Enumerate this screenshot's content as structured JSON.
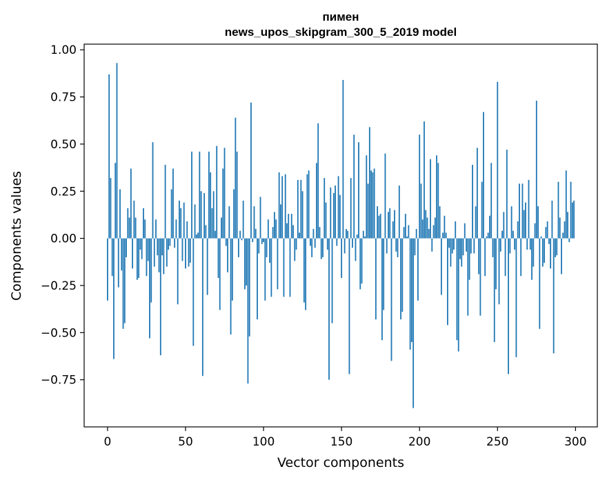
{
  "chart_data": {
    "type": "bar",
    "title": [
      "пимен",
      "news_upos_skipgram_300_5_2019 model"
    ],
    "xlabel": "Vector components",
    "ylabel": "Components values",
    "xlim": [
      -15,
      314
    ],
    "ylim": [
      -1.0,
      1.03
    ],
    "x_ticks": [
      0,
      50,
      100,
      150,
      200,
      250,
      300
    ],
    "y_ticks": [
      -0.75,
      -0.5,
      -0.25,
      0.0,
      0.25,
      0.5,
      0.75,
      1.0
    ],
    "y_tick_labels": [
      "−0.75",
      "−0.50",
      "−0.25",
      "0.00",
      "0.25",
      "0.50",
      "0.75",
      "1.00"
    ],
    "grid": false,
    "bar_color": "#1f77b4",
    "values": [
      -0.33,
      0.87,
      0.32,
      -0.2,
      -0.64,
      0.4,
      0.93,
      -0.26,
      0.26,
      -0.17,
      -0.48,
      -0.45,
      -0.1,
      0.16,
      0.11,
      0.37,
      -0.16,
      0.2,
      0.11,
      -0.22,
      -0.21,
      -0.06,
      -0.11,
      0.16,
      0.1,
      -0.2,
      -0.12,
      -0.53,
      -0.34,
      0.51,
      -0.15,
      0.1,
      -0.09,
      -0.18,
      -0.62,
      -0.09,
      -0.19,
      0.39,
      -0.15,
      -0.06,
      -0.04,
      0.26,
      0.37,
      -0.05,
      0.1,
      -0.35,
      0.2,
      0.16,
      -0.12,
      0.19,
      -0.16,
      0.09,
      -0.15,
      -0.13,
      0.46,
      -0.57,
      0.18,
      0.02,
      0.03,
      0.46,
      0.25,
      -0.73,
      0.24,
      0.07,
      -0.3,
      0.46,
      0.35,
      0.16,
      0.25,
      0.04,
      0.49,
      -0.21,
      -0.38,
      0.11,
      0.37,
      0.48,
      -0.04,
      -0.18,
      0.17,
      -0.51,
      -0.33,
      0.26,
      0.64,
      0.46,
      -0.1,
      0.04,
      -0.01,
      0.2,
      -0.27,
      -0.25,
      -0.77,
      -0.52,
      0.72,
      -0.02,
      0.17,
      0.05,
      -0.43,
      -0.08,
      0.22,
      -0.03,
      -0.02,
      -0.33,
      -0.1,
      0.1,
      -0.13,
      -0.31,
      0.06,
      0.14,
      0.1,
      -0.27,
      0.35,
      0.18,
      0.33,
      -0.31,
      0.34,
      0.08,
      0.13,
      -0.31,
      0.13,
      0.07,
      -0.12,
      -0.06,
      0.31,
      0.03,
      0.31,
      0.25,
      -0.34,
      -0.38,
      0.34,
      0.36,
      -0.04,
      -0.1,
      0.05,
      -0.05,
      0.4,
      0.61,
      0.06,
      -0.11,
      -0.1,
      0.32,
      0.19,
      -0.06,
      -0.75,
      0.27,
      -0.45,
      0.24,
      0.28,
      -0.04,
      0.33,
      0.23,
      -0.21,
      0.84,
      -0.08,
      0.05,
      0.04,
      -0.72,
      0.32,
      -0.05,
      0.55,
      -0.12,
      0.02,
      0.51,
      -0.27,
      -0.24,
      0.04,
      0.01,
      0.44,
      0.29,
      0.59,
      0.36,
      0.35,
      0.37,
      -0.43,
      0.17,
      0.12,
      0.13,
      -0.54,
      -0.38,
      0.45,
      -0.08,
      0.14,
      0.16,
      -0.65,
      0.09,
      0.15,
      -0.07,
      -0.1,
      0.28,
      -0.43,
      -0.39,
      0.06,
      0.13,
      0.01,
      0.07,
      -0.59,
      -0.55,
      -0.9,
      -0.09,
      0.05,
      -0.33,
      0.55,
      0.29,
      0.1,
      0.62,
      0.15,
      0.11,
      0.05,
      0.42,
      -0.07,
      0.07,
      0.11,
      0.44,
      0.4,
      0.17,
      -0.3,
      0.03,
      0.12,
      0.03,
      -0.46,
      -0.05,
      -0.15,
      -0.08,
      -0.06,
      0.09,
      -0.54,
      -0.6,
      -0.11,
      -0.15,
      -0.09,
      0.08,
      -0.07,
      -0.41,
      -0.22,
      -0.08,
      0.39,
      -0.08,
      0.17,
      0.48,
      -0.19,
      -0.41,
      0.3,
      0.67,
      -0.2,
      0.01,
      0.03,
      0.12,
      0.4,
      -0.1,
      -0.55,
      -0.27,
      0.83,
      -0.35,
      -0.07,
      0.04,
      0.14,
      -0.2,
      0.47,
      -0.72,
      -0.08,
      0.17,
      0.04,
      -0.06,
      -0.63,
      0.09,
      0.29,
      -0.2,
      0.29,
      0.15,
      0.19,
      -0.06,
      0.31,
      -0.06,
      -0.22,
      -0.15,
      0.08,
      0.73,
      0.17,
      -0.48,
      0.01,
      -0.15,
      -0.13,
      0.06,
      0.09,
      -0.03,
      -0.16,
      0.2,
      -0.61,
      -0.1,
      -0.09,
      0.3,
      0.11,
      -0.19,
      0.03,
      0.09,
      0.36,
      0.14,
      -0.02,
      0.3,
      0.19,
      0.2
    ]
  }
}
